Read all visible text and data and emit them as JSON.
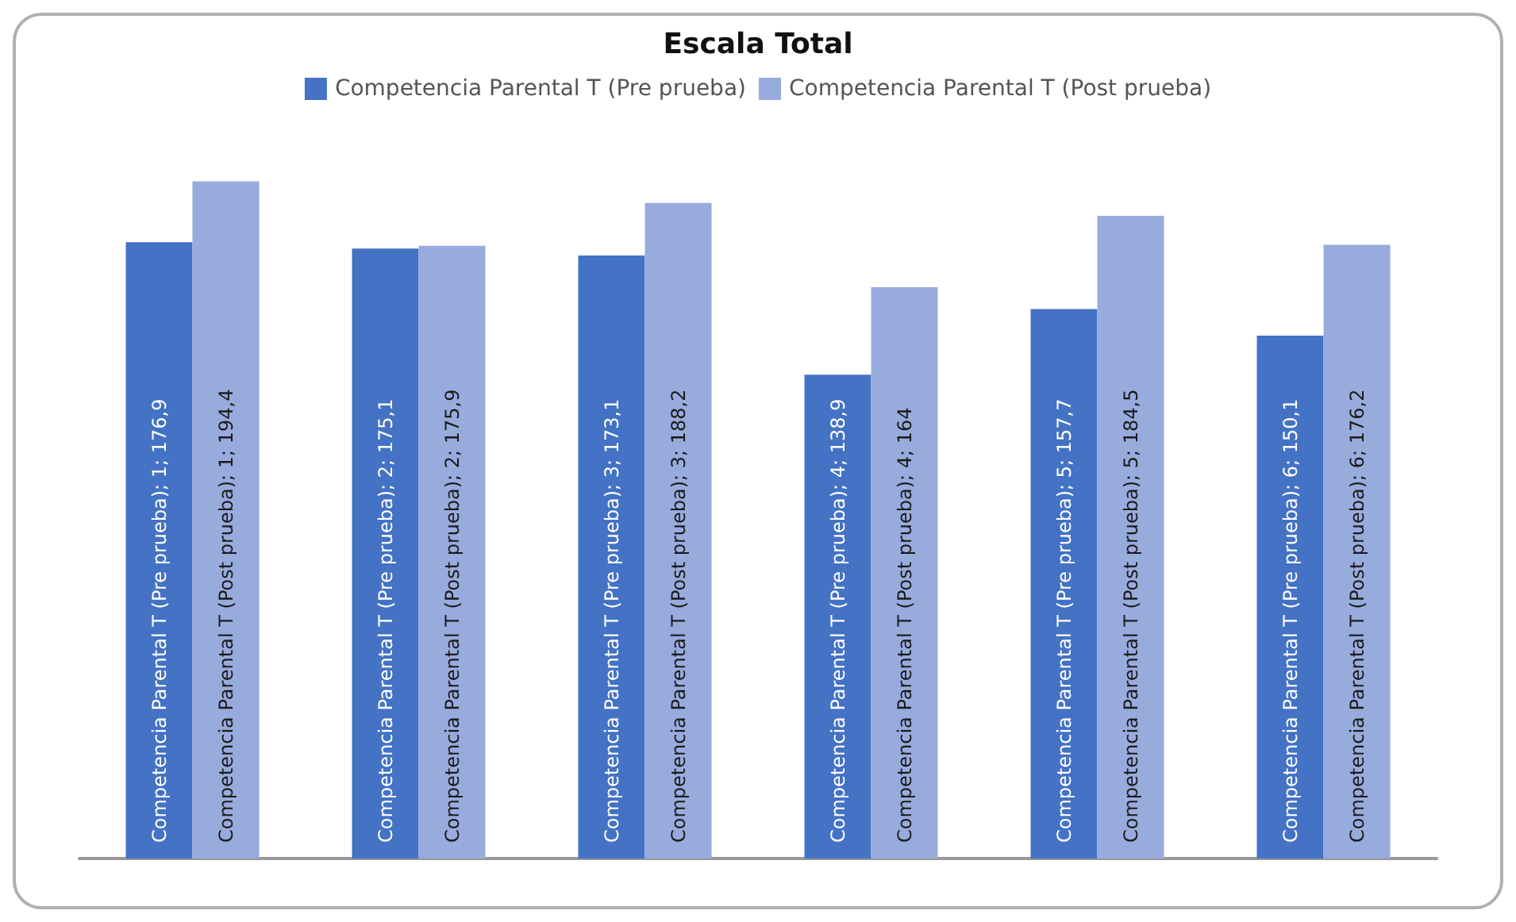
{
  "chart_data": {
    "type": "bar",
    "title": "Escala Total",
    "categories": [
      null,
      null,
      null,
      null,
      null,
      null
    ],
    "series": [
      {
        "name": "Competencia Parental T (Pre prueba)",
        "color": "#4472c4",
        "values": [
          176.9,
          175.1,
          173.1,
          138.9,
          157.7,
          150.1
        ],
        "value_labels": [
          "Competencia Parental T (Pre prueba); 1; 176,9",
          "Competencia Parental T (Pre prueba); 2; 175,1",
          "Competencia Parental T (Pre prueba); 3; 173,1",
          "Competencia Parental T (Pre prueba); 4; 138,9",
          "Competencia Parental T (Pre prueba); 5; 157,7",
          "Competencia Parental T (Pre prueba); 6; 150,1"
        ]
      },
      {
        "name": "Competencia Parental T (Post prueba)",
        "color": "#98abdd",
        "values": [
          194.4,
          175.9,
          188.2,
          164,
          184.5,
          176.2
        ],
        "value_labels": [
          "Competencia Parental T (Post prueba); 1; 194,4",
          "Competencia Parental T (Post prueba); 2; 175,9",
          "Competencia Parental T (Post prueba); 3; 188,2",
          "Competencia Parental T (Post prueba); 4; 164",
          "Competencia Parental T (Post prueba); 5; 184,5",
          "Competencia Parental T (Post prueba); 6; 176,2"
        ]
      }
    ],
    "tick_labels": false,
    "grid": false,
    "legend": "top"
  }
}
